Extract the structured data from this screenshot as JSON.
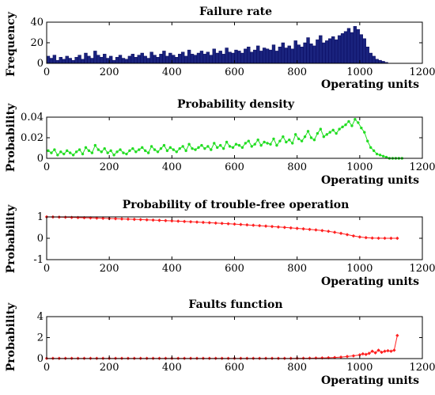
{
  "chart_data": [
    {
      "type": "bar",
      "title": "Failure rate",
      "xlabel": "Operating units",
      "ylabel": "Frequency",
      "xlim": [
        0,
        1200
      ],
      "ylim": [
        0,
        40
      ],
      "xticks": [
        0,
        200,
        400,
        600,
        800,
        1000,
        1200
      ],
      "yticks": [
        0,
        20,
        40
      ],
      "grid": false,
      "color": "#1a237e",
      "bin_width": 10,
      "x": [
        5,
        15,
        25,
        35,
        45,
        55,
        65,
        75,
        85,
        95,
        105,
        115,
        125,
        135,
        145,
        155,
        165,
        175,
        185,
        195,
        205,
        215,
        225,
        235,
        245,
        255,
        265,
        275,
        285,
        295,
        305,
        315,
        325,
        335,
        345,
        355,
        365,
        375,
        385,
        395,
        405,
        415,
        425,
        435,
        445,
        455,
        465,
        475,
        485,
        495,
        505,
        515,
        525,
        535,
        545,
        555,
        565,
        575,
        585,
        595,
        605,
        615,
        625,
        635,
        645,
        655,
        665,
        675,
        685,
        695,
        705,
        715,
        725,
        735,
        745,
        755,
        765,
        775,
        785,
        795,
        805,
        815,
        825,
        835,
        845,
        855,
        865,
        875,
        885,
        895,
        905,
        915,
        925,
        935,
        945,
        955,
        965,
        975,
        985,
        995,
        1005,
        1015,
        1025,
        1035,
        1045,
        1055,
        1065,
        1075,
        1085,
        1095,
        1105,
        1115,
        1125,
        1135
      ],
      "values": [
        7,
        5,
        8,
        3,
        6,
        4,
        7,
        5,
        3,
        6,
        8,
        4,
        10,
        7,
        5,
        12,
        8,
        6,
        9,
        5,
        7,
        3,
        6,
        8,
        5,
        4,
        7,
        9,
        6,
        8,
        10,
        7,
        5,
        11,
        8,
        6,
        9,
        12,
        7,
        10,
        8,
        6,
        9,
        11,
        7,
        13,
        9,
        8,
        10,
        12,
        9,
        11,
        8,
        14,
        10,
        12,
        9,
        15,
        11,
        10,
        13,
        12,
        10,
        14,
        16,
        11,
        13,
        17,
        12,
        15,
        14,
        13,
        18,
        12,
        16,
        20,
        15,
        17,
        14,
        22,
        18,
        16,
        20,
        25,
        19,
        17,
        23,
        27,
        20,
        22,
        24,
        26,
        23,
        27,
        29,
        31,
        34,
        30,
        36,
        33,
        28,
        24,
        16,
        10,
        7,
        4,
        3,
        2,
        1,
        0,
        0,
        0,
        0,
        0
      ]
    },
    {
      "type": "line",
      "title": "Probability density",
      "xlabel": "Operating units",
      "ylabel": "Probability",
      "xlim": [
        0,
        1200
      ],
      "ylim": [
        0,
        0.04
      ],
      "xticks": [
        0,
        200,
        400,
        600,
        800,
        1000,
        1200
      ],
      "yticks": [
        0,
        0.02,
        0.04
      ],
      "ytick_labels": [
        "0",
        "0.02",
        "0.04"
      ],
      "grid": false,
      "color": "#22dd22",
      "marker": "dot",
      "x": [
        5,
        15,
        25,
        35,
        45,
        55,
        65,
        75,
        85,
        95,
        105,
        115,
        125,
        135,
        145,
        155,
        165,
        175,
        185,
        195,
        205,
        215,
        225,
        235,
        245,
        255,
        265,
        275,
        285,
        295,
        305,
        315,
        325,
        335,
        345,
        355,
        365,
        375,
        385,
        395,
        405,
        415,
        425,
        435,
        445,
        455,
        465,
        475,
        485,
        495,
        505,
        515,
        525,
        535,
        545,
        555,
        565,
        575,
        585,
        595,
        605,
        615,
        625,
        635,
        645,
        655,
        665,
        675,
        685,
        695,
        705,
        715,
        725,
        735,
        745,
        755,
        765,
        775,
        785,
        795,
        805,
        815,
        825,
        835,
        845,
        855,
        865,
        875,
        885,
        895,
        905,
        915,
        925,
        935,
        945,
        955,
        965,
        975,
        985,
        995,
        1005,
        1015,
        1025,
        1035,
        1045,
        1055,
        1065,
        1075,
        1085,
        1095,
        1105,
        1115,
        1125,
        1135
      ],
      "y": [
        0.0074,
        0.0053,
        0.0084,
        0.0032,
        0.0063,
        0.0042,
        0.0074,
        0.0053,
        0.0032,
        0.0063,
        0.0084,
        0.0042,
        0.0105,
        0.0074,
        0.0053,
        0.0126,
        0.0084,
        0.0063,
        0.0095,
        0.0053,
        0.0074,
        0.0032,
        0.0063,
        0.0084,
        0.0053,
        0.0042,
        0.0074,
        0.0095,
        0.0063,
        0.0084,
        0.0105,
        0.0074,
        0.0053,
        0.0116,
        0.0084,
        0.0063,
        0.0095,
        0.0126,
        0.0074,
        0.0105,
        0.0084,
        0.0063,
        0.0095,
        0.0116,
        0.0074,
        0.0137,
        0.0095,
        0.0084,
        0.0105,
        0.0126,
        0.0095,
        0.0116,
        0.0084,
        0.0147,
        0.0105,
        0.0126,
        0.0095,
        0.0158,
        0.0116,
        0.0105,
        0.0137,
        0.0126,
        0.0105,
        0.0147,
        0.0168,
        0.0116,
        0.0137,
        0.0179,
        0.0126,
        0.0158,
        0.0147,
        0.0137,
        0.0189,
        0.0126,
        0.0168,
        0.021,
        0.0158,
        0.0179,
        0.0147,
        0.0232,
        0.0189,
        0.0168,
        0.021,
        0.0263,
        0.02,
        0.0179,
        0.0242,
        0.0284,
        0.021,
        0.0232,
        0.0253,
        0.0274,
        0.0242,
        0.0284,
        0.0305,
        0.0326,
        0.0358,
        0.0316,
        0.0379,
        0.0347,
        0.0295,
        0.0253,
        0.0168,
        0.0105,
        0.0074,
        0.0042,
        0.0032,
        0.0021,
        0.0011,
        0.0,
        0.0,
        0.0,
        0.0,
        0.0
      ]
    },
    {
      "type": "line",
      "title": "Probability of trouble-free operation",
      "xlabel": "Operating units",
      "ylabel": "Probability",
      "xlim": [
        0,
        1200
      ],
      "ylim": [
        -1,
        1
      ],
      "xticks": [
        0,
        200,
        400,
        600,
        800,
        1000,
        1200
      ],
      "yticks": [
        -1,
        0,
        1
      ],
      "grid": false,
      "color": "#ff2020",
      "marker": "diamond",
      "x": [
        0,
        20,
        40,
        60,
        80,
        100,
        120,
        140,
        160,
        180,
        200,
        220,
        240,
        260,
        280,
        300,
        320,
        340,
        360,
        380,
        400,
        420,
        440,
        460,
        480,
        500,
        520,
        540,
        560,
        580,
        600,
        620,
        640,
        660,
        680,
        700,
        720,
        740,
        760,
        780,
        800,
        820,
        840,
        860,
        880,
        900,
        920,
        940,
        960,
        980,
        1000,
        1020,
        1040,
        1060,
        1080,
        1100,
        1120
      ],
      "y": [
        1.0,
        0.995,
        0.99,
        0.983,
        0.976,
        0.968,
        0.96,
        0.952,
        0.943,
        0.934,
        0.925,
        0.915,
        0.905,
        0.895,
        0.884,
        0.873,
        0.862,
        0.85,
        0.838,
        0.826,
        0.813,
        0.8,
        0.786,
        0.772,
        0.758,
        0.743,
        0.728,
        0.712,
        0.696,
        0.68,
        0.663,
        0.645,
        0.627,
        0.608,
        0.589,
        0.569,
        0.549,
        0.528,
        0.507,
        0.485,
        0.463,
        0.44,
        0.416,
        0.39,
        0.36,
        0.325,
        0.28,
        0.23,
        0.17,
        0.11,
        0.06,
        0.03,
        0.01,
        0.003,
        0.001,
        0.0,
        0.0
      ]
    },
    {
      "type": "line",
      "title": "Faults function",
      "xlabel": "Operating units",
      "ylabel": "Probability",
      "xlim": [
        0,
        1200
      ],
      "ylim": [
        0,
        4
      ],
      "xticks": [
        0,
        200,
        400,
        600,
        800,
        1000,
        1200
      ],
      "yticks": [
        0,
        2,
        4
      ],
      "grid": false,
      "color": "#ff2020",
      "marker": "diamond",
      "x": [
        0,
        20,
        40,
        60,
        80,
        100,
        120,
        140,
        160,
        180,
        200,
        220,
        240,
        260,
        280,
        300,
        320,
        340,
        360,
        380,
        400,
        420,
        440,
        460,
        480,
        500,
        520,
        540,
        560,
        580,
        600,
        620,
        640,
        660,
        680,
        700,
        720,
        740,
        760,
        780,
        800,
        820,
        840,
        860,
        880,
        900,
        920,
        940,
        960,
        980,
        1000,
        1010,
        1020,
        1030,
        1040,
        1050,
        1060,
        1070,
        1080,
        1090,
        1100,
        1110,
        1120
      ],
      "y": [
        0.02,
        0.02,
        0.02,
        0.02,
        0.02,
        0.02,
        0.02,
        0.02,
        0.02,
        0.02,
        0.02,
        0.02,
        0.02,
        0.02,
        0.02,
        0.02,
        0.02,
        0.02,
        0.02,
        0.02,
        0.02,
        0.02,
        0.02,
        0.02,
        0.02,
        0.02,
        0.02,
        0.02,
        0.02,
        0.02,
        0.02,
        0.02,
        0.02,
        0.02,
        0.02,
        0.02,
        0.02,
        0.02,
        0.02,
        0.02,
        0.03,
        0.03,
        0.04,
        0.05,
        0.06,
        0.08,
        0.1,
        0.14,
        0.2,
        0.26,
        0.35,
        0.45,
        0.4,
        0.5,
        0.7,
        0.55,
        0.8,
        0.6,
        0.7,
        0.75,
        0.7,
        0.8,
        2.2
      ]
    }
  ]
}
